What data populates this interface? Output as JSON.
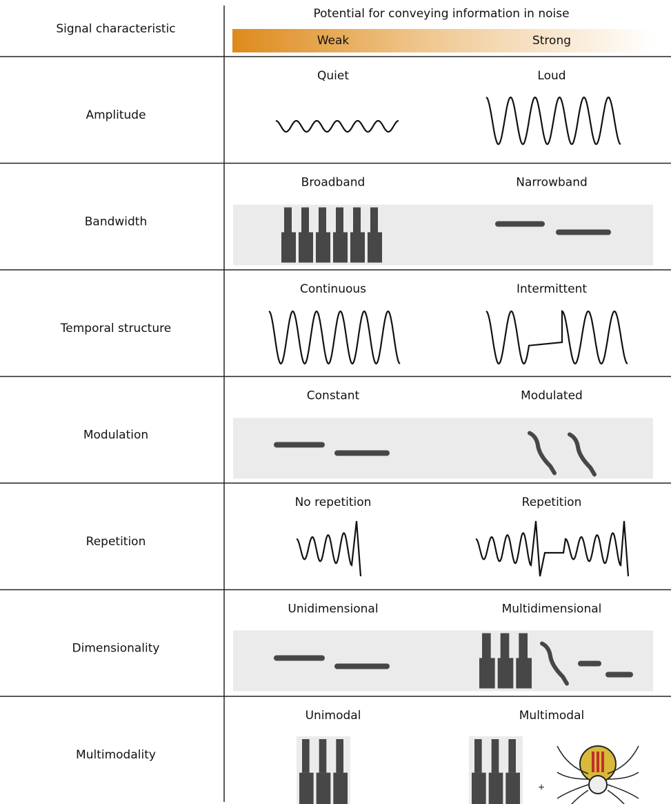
{
  "header": {
    "column_label": "Signal characteristic",
    "title": "Potential for conveying information in noise",
    "weak": "Weak",
    "strong": "Strong"
  },
  "rows": [
    {
      "label": "Amplitude",
      "weak": "Quiet",
      "strong": "Loud"
    },
    {
      "label": "Bandwidth",
      "weak": "Broadband",
      "strong": "Narrowband"
    },
    {
      "label": "Temporal structure",
      "weak": "Continuous",
      "strong": "Intermittent"
    },
    {
      "label": "Modulation",
      "weak": "Constant",
      "strong": "Modulated"
    },
    {
      "label": "Repetition",
      "weak": "No repetition",
      "strong": "Repetition"
    },
    {
      "label": "Dimensionality",
      "weak": "Unidimensional",
      "strong": "Multidimensional"
    },
    {
      "label": "Multimodality",
      "weak": "Unimodal",
      "strong": "Multimodal"
    }
  ],
  "plus": "+"
}
